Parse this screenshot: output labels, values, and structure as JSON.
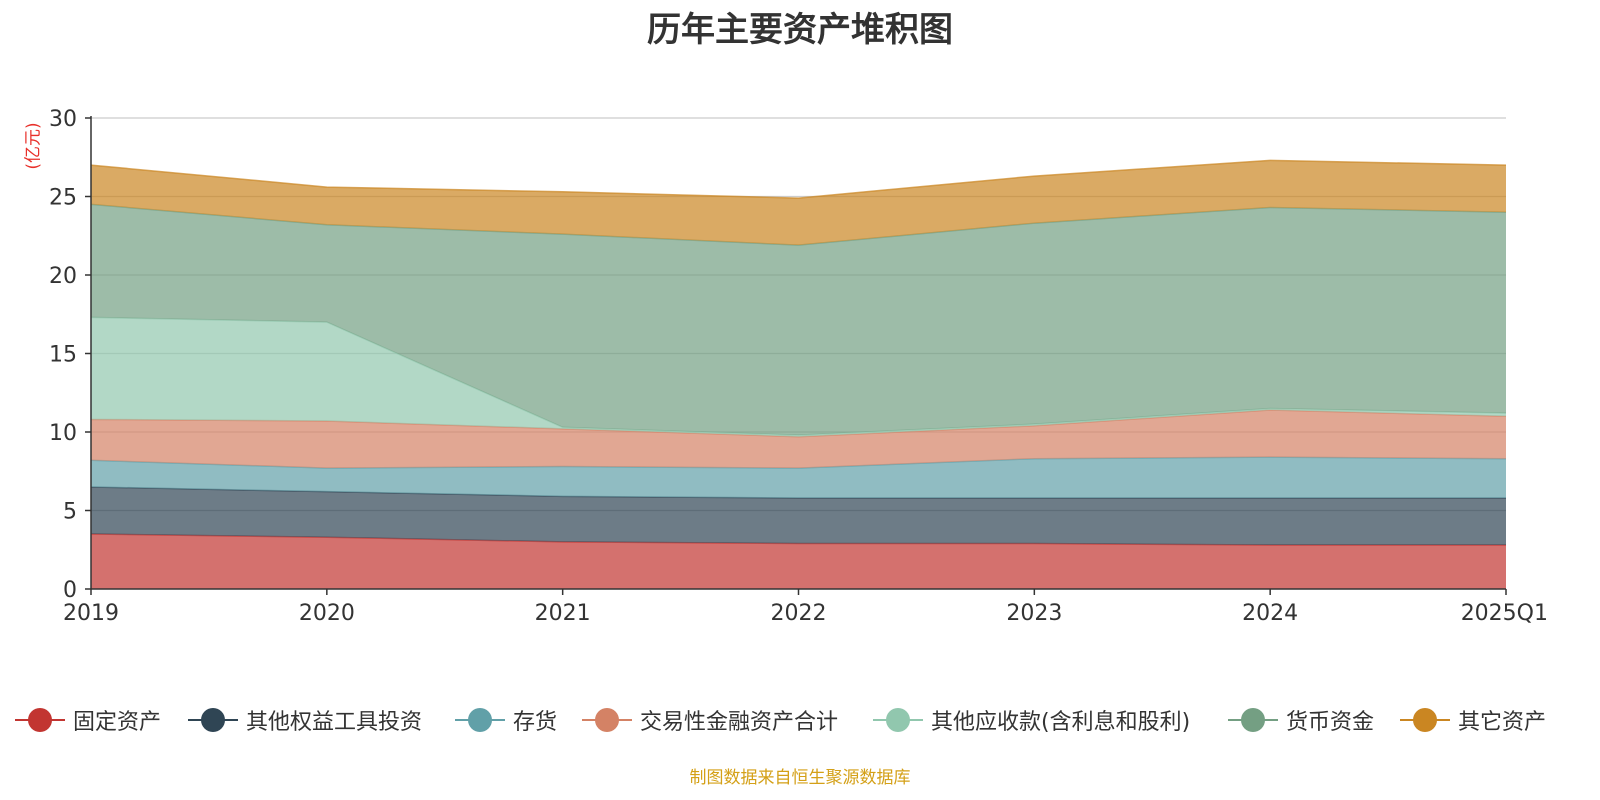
{
  "page": {
    "title": "历年主要资产堆积图",
    "unit_label": "(亿元)",
    "source": "制图数据来自恒生聚源数据库"
  },
  "chart_data": {
    "type": "area",
    "stacked": true,
    "title": "历年主要资产堆积图",
    "ylabel": "(亿元)",
    "xlabel": "",
    "ylim": [
      0,
      30
    ],
    "yticks": [
      0,
      5,
      10,
      15,
      20,
      25,
      30
    ],
    "grid": true,
    "legend_position": "bottom",
    "categories": [
      "2019",
      "2020",
      "2021",
      "2022",
      "2023",
      "2024",
      "2025Q1"
    ],
    "series": [
      {
        "name": "固定资产",
        "color": "#c23531",
        "values": [
          3.5,
          3.3,
          3.0,
          2.9,
          2.9,
          2.8,
          2.8
        ]
      },
      {
        "name": "其他权益工具投资",
        "color": "#2f4554",
        "values": [
          3.0,
          2.9,
          2.9,
          2.9,
          2.9,
          3.0,
          3.0
        ]
      },
      {
        "name": "存货",
        "color": "#61a0a8",
        "values": [
          1.7,
          1.5,
          1.9,
          1.9,
          2.5,
          2.6,
          2.5
        ]
      },
      {
        "name": "交易性金融资产合计",
        "color": "#d48265",
        "values": [
          2.6,
          3.0,
          2.4,
          2.0,
          2.1,
          3.0,
          2.7
        ]
      },
      {
        "name": "其他应收款(含利息和股利)",
        "color": "#91c7ae",
        "values": [
          6.5,
          6.3,
          0.1,
          0.1,
          0.1,
          0.1,
          0.2
        ]
      },
      {
        "name": "货币资金",
        "color": "#749f83",
        "values": [
          7.2,
          6.2,
          12.3,
          12.1,
          12.8,
          12.8,
          12.8
        ]
      },
      {
        "name": "其它资产",
        "color": "#ca8622",
        "values": [
          2.5,
          2.4,
          2.7,
          3.0,
          3.0,
          3.0,
          3.0
        ]
      }
    ]
  }
}
